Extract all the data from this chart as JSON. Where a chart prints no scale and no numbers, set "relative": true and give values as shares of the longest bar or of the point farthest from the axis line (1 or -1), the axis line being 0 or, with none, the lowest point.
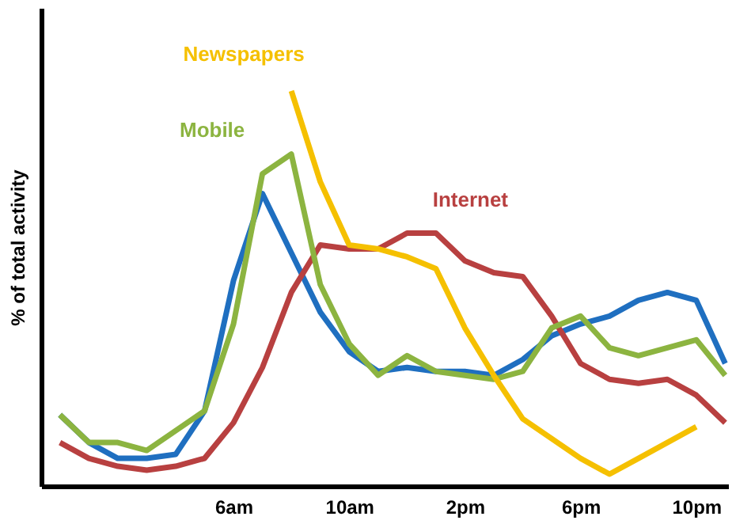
{
  "chart_data": {
    "type": "line",
    "relative": true,
    "ylabel": "% of total activity",
    "tick_labels": "x",
    "legend": false,
    "marker": "none",
    "line_style": "solid",
    "categories": [
      null,
      null,
      null,
      null,
      null,
      null,
      "6am",
      null,
      null,
      null,
      "10am",
      null,
      null,
      null,
      "2pm",
      null,
      null,
      null,
      "6pm",
      null,
      null,
      null,
      "10pm",
      null
    ],
    "series": [
      {
        "name": "Newspapers",
        "color": "#f5c000",
        "values": [
          null,
          null,
          null,
          null,
          null,
          null,
          null,
          null,
          1,
          0.77,
          0.61,
          0.6,
          0.58,
          0.55,
          0.4,
          0.28,
          0.17,
          0.12,
          0.07,
          0.03,
          0.07,
          0.11,
          0.15,
          null
        ]
      },
      {
        "name": "Mobile",
        "color": "#8cb440",
        "values": [
          0.18,
          0.11,
          0.11,
          0.09,
          0.14,
          0.19,
          0.41,
          0.79,
          0.84,
          0.51,
          0.36,
          0.28,
          0.33,
          0.29,
          0.28,
          0.27,
          0.29,
          0.4,
          0.43,
          0.35,
          0.33,
          0.35,
          0.37,
          0.28
        ]
      },
      {
        "name": "Internet",
        "color": "#b84040",
        "values": [
          0.11,
          0.07,
          0.05,
          0.04,
          0.05,
          0.07,
          0.16,
          0.3,
          0.49,
          0.61,
          0.6,
          0.6,
          0.64,
          0.64,
          0.57,
          0.54,
          0.53,
          0.43,
          0.31,
          0.27,
          0.26,
          0.27,
          0.23,
          0.16
        ]
      },
      {
        "color": "#1f6fc0",
        "values": [
          0.18,
          0.11,
          0.07,
          0.07,
          0.08,
          0.19,
          0.52,
          0.74,
          0.59,
          0.44,
          0.34,
          0.29,
          0.3,
          0.29,
          0.29,
          0.28,
          0.32,
          0.38,
          0.41,
          0.43,
          0.47,
          0.49,
          0.47,
          0.31
        ]
      }
    ]
  }
}
